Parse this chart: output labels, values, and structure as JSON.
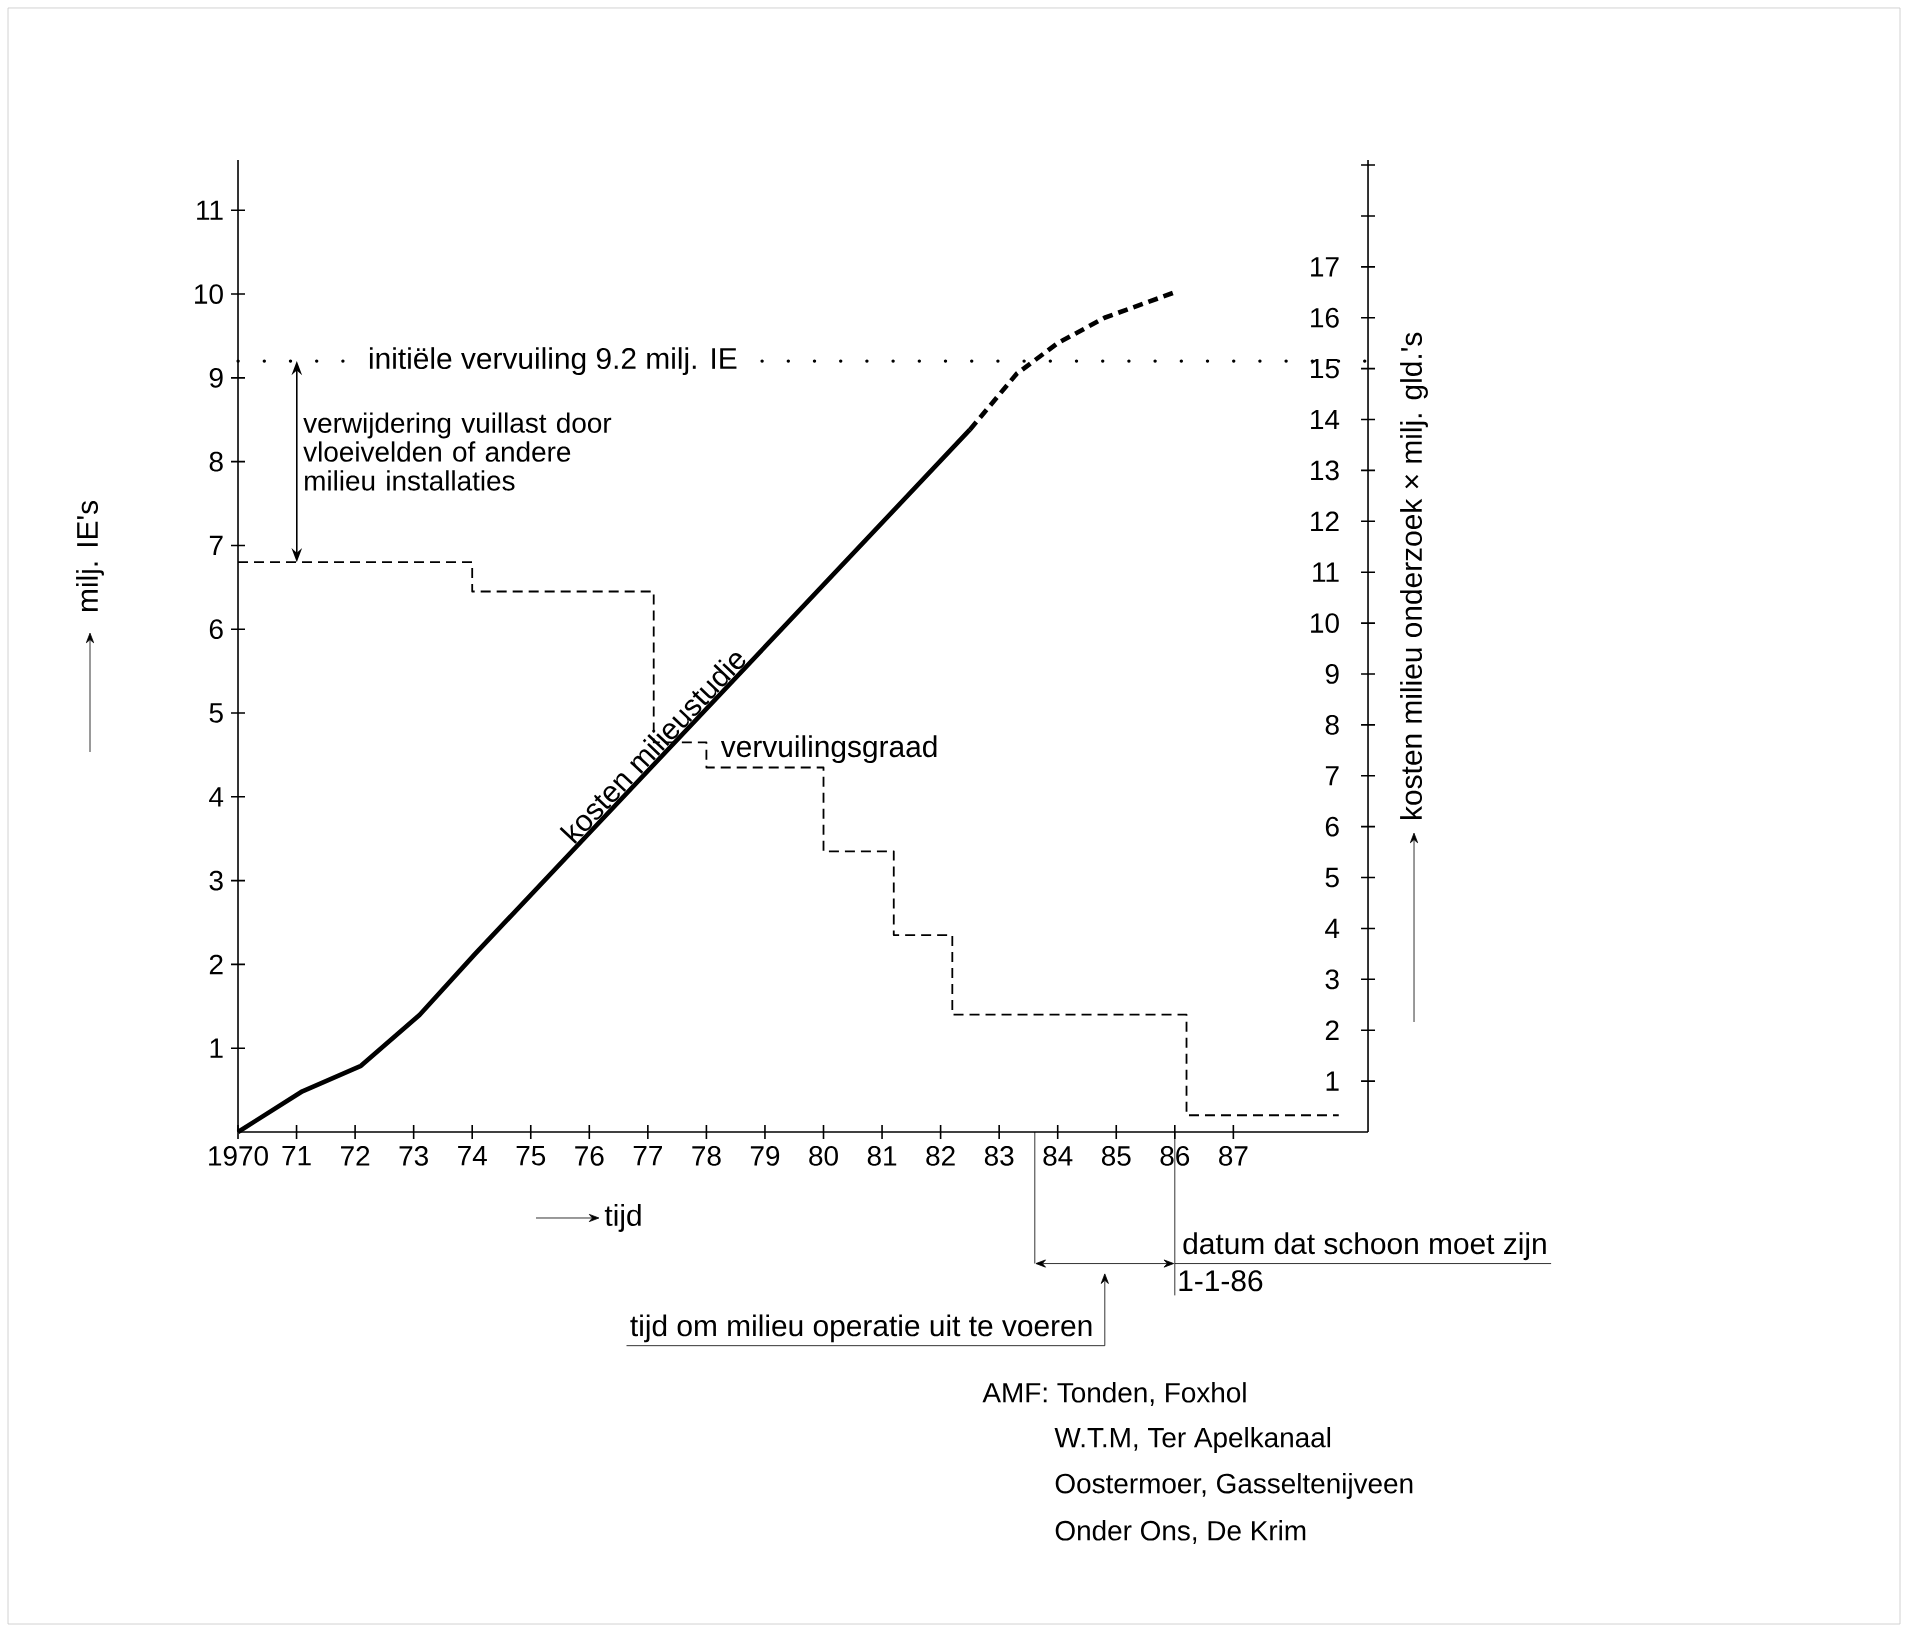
{
  "chart_data": {
    "type": "line",
    "xlabel": "tijd",
    "ylabel": "milj. IE's",
    "y2label": "kosten milieu onderzoek × milj. gld.'s",
    "xlim": [
      1970,
      1989.3
    ],
    "xticks": [
      1970,
      {
        "value": 1971,
        "label": "71"
      },
      {
        "value": 1972,
        "label": "72"
      },
      {
        "value": 1973,
        "label": "73"
      },
      {
        "value": 1974,
        "label": "74"
      },
      {
        "value": 1975,
        "label": "75"
      },
      {
        "value": 1976,
        "label": "76"
      },
      {
        "value": 1977,
        "label": "77"
      },
      {
        "value": 1978,
        "label": "78"
      },
      {
        "value": 1979,
        "label": "79"
      },
      {
        "value": 1980,
        "label": "80"
      },
      {
        "value": 1981,
        "label": "81"
      },
      {
        "value": 1982,
        "label": "82"
      },
      {
        "value": 1983,
        "label": "83"
      },
      {
        "value": 1984,
        "label": "84"
      },
      {
        "value": 1985,
        "label": "85"
      },
      {
        "value": 1986,
        "label": "86"
      },
      {
        "value": 1987,
        "label": "87"
      }
    ],
    "ylim": [
      0,
      11.6
    ],
    "yticks": [
      1,
      2,
      3,
      4,
      5,
      6,
      7,
      8,
      9,
      10,
      11
    ],
    "y2lim": [
      0,
      19.1
    ],
    "y2ticks": [
      1,
      2,
      3,
      4,
      5,
      6,
      7,
      8,
      9,
      10,
      11,
      12,
      13,
      14,
      15,
      16,
      17,
      {
        "value": 18,
        "label": null
      },
      {
        "value": 19,
        "label": null
      }
    ],
    "series": [
      {
        "name": "kosten milieustudie",
        "axis": "y2",
        "color": "#000000",
        "line_style": "solid",
        "x": [
          1970,
          1971.1,
          1972.1,
          1973.1,
          1974.05,
          1982.5
        ],
        "values": [
          0,
          0.8,
          1.3,
          2.3,
          3.5,
          13.8
        ]
      },
      {
        "type": "line",
        "axis": "y2",
        "color": "#000000",
        "line_style": "dashed",
        "x": [
          1982.5,
          1983.3,
          1984.0,
          1984.8,
          1986.0
        ],
        "values": [
          13.8,
          14.9,
          15.5,
          16.0,
          16.5
        ]
      },
      {
        "name": "vervuilingsgraad",
        "type": "step",
        "color": "#000000",
        "line_style": "dashed",
        "x": [
          1970,
          1974.0,
          1977.1,
          1978.0,
          1980.0,
          1981.2,
          1982.2,
          1986.2,
          1988.8
        ],
        "values": [
          6.8,
          6.45,
          4.65,
          4.35,
          3.35,
          2.35,
          1.4,
          0.2,
          0.2
        ]
      }
    ],
    "ref_lines": [
      {
        "axis": "y",
        "value": 9.2,
        "label": "initiële vervuiling 9.2 milj. IE",
        "line_style": "dotted"
      },
      {
        "axis": "x",
        "value": 1986,
        "label": "datum dat schoon moet zijn"
      }
    ],
    "annotations": [
      "verwijdering vuillast door vloeivelden of andere milieu installaties",
      "tijd om milieu operatie uit te voeren",
      "1-1-86",
      "AMF: Tonden, Foxhol",
      "W.T.M, Ter Apelkanaal",
      "Oostermoer, Gasseltenijveen",
      "Onder Ons, De Krim"
    ]
  }
}
